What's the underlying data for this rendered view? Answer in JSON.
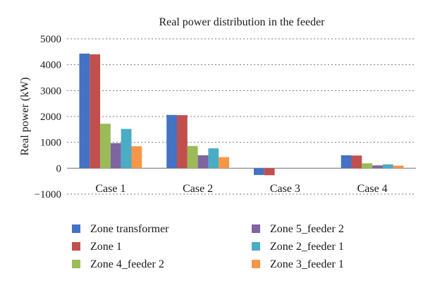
{
  "chart_data": {
    "type": "bar",
    "title": "Real power distribution in the feeder",
    "xlabel": "",
    "ylabel": "Real power (kW)",
    "ylim": [
      -1000,
      5000
    ],
    "yticks": [
      -1000,
      0,
      1000,
      2000,
      3000,
      4000,
      5000
    ],
    "ytick_labels": [
      "−1000",
      "0",
      "1000",
      "2000",
      "3000",
      "4000",
      "5000"
    ],
    "grid": "horizontal dashed",
    "legend_position": "bottom",
    "categories": [
      "Case 1",
      "Case 2",
      "Case 3",
      "Case 4"
    ],
    "series": [
      {
        "name": "Zone transformer",
        "color": "#4472C4",
        "values": [
          4430,
          2060,
          -260,
          500
        ]
      },
      {
        "name": "Zone 1",
        "color": "#C0504D",
        "values": [
          4400,
          2050,
          -270,
          490
        ]
      },
      {
        "name": "Zone 4_feeder 2",
        "color": "#9BBB59",
        "values": [
          1720,
          860,
          0,
          190
        ]
      },
      {
        "name": "Zone 5_feeder 2",
        "color": "#8064A2",
        "values": [
          970,
          500,
          0,
          110
        ]
      },
      {
        "name": "Zone 2_feeder 1",
        "color": "#4BACC6",
        "values": [
          1520,
          770,
          0,
          150
        ]
      },
      {
        "name": "Zone 3_feeder 1",
        "color": "#F79646",
        "values": [
          850,
          430,
          0,
          100
        ]
      }
    ]
  }
}
